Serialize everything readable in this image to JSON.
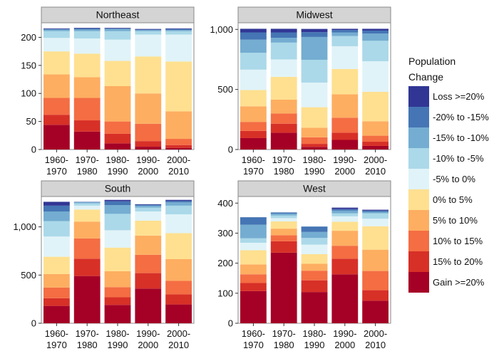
{
  "chart_data": {
    "type": "bar",
    "stacked": true,
    "categories": [
      "1960-1970",
      "1970-1980",
      "1980-1990",
      "1990-2000",
      "2000-2010"
    ],
    "legend": {
      "title": [
        "Population",
        "Change"
      ],
      "position": "right",
      "entries": [
        {
          "name": "Loss >=20%",
          "color": "#313695"
        },
        {
          "name": "-20% to -15%",
          "color": "#4575b4"
        },
        {
          "name": "-15% to -10%",
          "color": "#74add1"
        },
        {
          "name": "-10% to -5%",
          "color": "#abd9e9"
        },
        {
          "name": "-5% to 0%",
          "color": "#e0f3f8"
        },
        {
          "name": "0% to 5%",
          "color": "#fee090"
        },
        {
          "name": "5% to 10%",
          "color": "#fdae61"
        },
        {
          "name": "10% to 15%",
          "color": "#f46d43"
        },
        {
          "name": "15% to 20%",
          "color": "#d73027"
        },
        {
          "name": "Gain >=20%",
          "color": "#a50026"
        }
      ]
    },
    "stack_order": [
      "Gain >=20%",
      "15% to 20%",
      "10% to 15%",
      "5% to 10%",
      "0% to 5%",
      "-5% to 0%",
      "-10% to -5%",
      "-15% to -10%",
      "-20% to -15%",
      "Loss >=20%"
    ],
    "panels": [
      {
        "title": "Northeast",
        "ylim": [
          0,
          226
        ],
        "yticks": [
          0,
          50,
          100,
          150,
          200
        ],
        "ytick_labels": [
          "0",
          "50",
          "100",
          "150",
          "200"
        ],
        "stacks": [
          [
            44,
            18,
            30,
            42,
            41,
            24,
            12,
            3,
            1,
            1
          ],
          [
            32,
            20,
            40,
            37,
            42,
            27,
            13,
            3,
            2,
            1
          ],
          [
            11,
            17,
            22,
            63,
            45,
            38,
            15,
            4,
            1,
            1
          ],
          [
            5,
            10,
            31,
            54,
            66,
            39,
            6,
            2,
            1,
            1
          ],
          [
            3,
            5,
            11,
            49,
            89,
            48,
            6,
            2,
            2,
            1
          ]
        ]
      },
      {
        "title": "Midwest",
        "ylim": [
          0,
          1055
        ],
        "yticks": [
          0,
          500,
          1000
        ],
        "ytick_labels": [
          "0",
          "500",
          "1,000"
        ],
        "stacks": [
          [
            95,
            60,
            75,
            130,
            135,
            170,
            140,
            110,
            60,
            30
          ],
          [
            140,
            75,
            85,
            115,
            190,
            145,
            140,
            40,
            45,
            30
          ],
          [
            22,
            25,
            55,
            80,
            170,
            205,
            190,
            190,
            40,
            27
          ],
          [
            80,
            60,
            125,
            195,
            210,
            190,
            85,
            30,
            20,
            10
          ],
          [
            30,
            35,
            50,
            120,
            245,
            255,
            170,
            60,
            25,
            15
          ]
        ]
      },
      {
        "title": "South",
        "ylim": [
          0,
          1315
        ],
        "yticks": [
          0,
          500,
          1000
        ],
        "ytick_labels": [
          "0",
          "500",
          "1,000"
        ],
        "stacks": [
          [
            180,
            80,
            110,
            140,
            180,
            210,
            160,
            100,
            60,
            40
          ],
          [
            490,
            180,
            210,
            175,
            125,
            40,
            25,
            10,
            4,
            1
          ],
          [
            190,
            80,
            105,
            165,
            245,
            180,
            170,
            90,
            40,
            15
          ],
          [
            360,
            160,
            190,
            200,
            155,
            95,
            40,
            20,
            10,
            5
          ],
          [
            195,
            105,
            140,
            225,
            270,
            195,
            90,
            35,
            15,
            10
          ]
        ]
      },
      {
        "title": "West",
        "ylim": [
          0,
          422
        ],
        "yticks": [
          0,
          100,
          200,
          300,
          400
        ],
        "ytick_labels": [
          "0",
          "100",
          "200",
          "300",
          "400"
        ],
        "stacks": [
          [
            107,
            27,
            29,
            33,
            47,
            25,
            15,
            45,
            25,
            0
          ],
          [
            235,
            38,
            20,
            22,
            24,
            11,
            9,
            6,
            4,
            0
          ],
          [
            104,
            39,
            32,
            23,
            32,
            32,
            22,
            20,
            18,
            0
          ],
          [
            163,
            52,
            43,
            50,
            30,
            18,
            10,
            9,
            5,
            5
          ],
          [
            75,
            35,
            64,
            71,
            78,
            25,
            18,
            5,
            4,
            3
          ]
        ]
      }
    ]
  }
}
